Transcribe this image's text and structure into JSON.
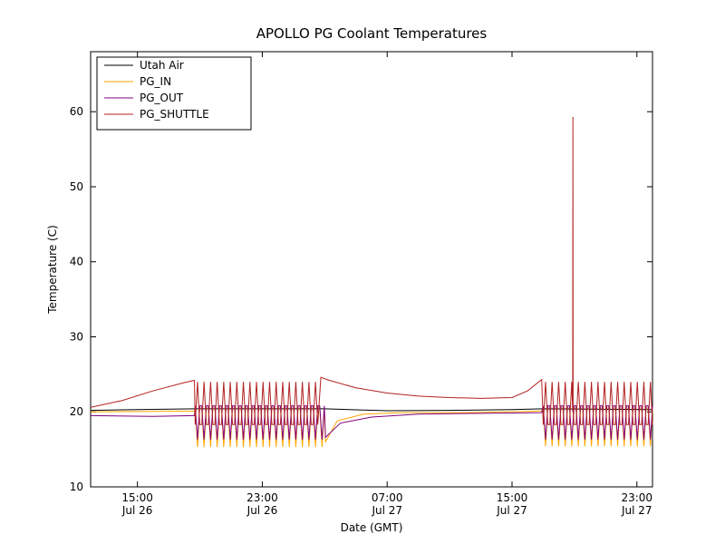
{
  "chart_data": {
    "type": "line",
    "title": "APOLLO PG Coolant Temperatures",
    "xlabel": "Date (GMT)",
    "ylabel": "Temperature (C)",
    "background_color": "#ffffff",
    "axes_color": "#000000",
    "xlim_hours": [
      0,
      36
    ],
    "ylim": [
      10,
      68
    ],
    "y_ticks": [
      10,
      20,
      30,
      40,
      50,
      60
    ],
    "x_ticks": [
      {
        "hour": 3,
        "time": "15:00",
        "date": "Jul 26"
      },
      {
        "hour": 11,
        "time": "23:00",
        "date": "Jul 26"
      },
      {
        "hour": 19,
        "time": "07:00",
        "date": "Jul 27"
      },
      {
        "hour": 27,
        "time": "15:00",
        "date": "Jul 27"
      },
      {
        "hour": 35,
        "time": "23:00",
        "date": "Jul 27"
      }
    ],
    "legend": {
      "position": "upper-left",
      "border_color": "#000000",
      "background": "#ffffff"
    },
    "series": [
      {
        "name": "Utah Air",
        "color": "#000000",
        "segments": [
          {
            "type": "smooth",
            "points": [
              [
                0,
                20.2
              ],
              [
                3,
                20.3
              ],
              [
                6.7,
                20.4
              ],
              [
                12,
                20.4
              ],
              [
                15,
                20.4
              ],
              [
                19,
                20.15
              ],
              [
                23,
                20.2
              ],
              [
                27,
                20.3
              ],
              [
                29,
                20.4
              ],
              [
                33,
                20.35
              ],
              [
                36,
                20.3
              ]
            ]
          }
        ]
      },
      {
        "name": "PG_IN",
        "color": "#ffa500",
        "segments": [
          {
            "type": "smooth",
            "points": [
              [
                0,
                20.0
              ],
              [
                3,
                20.05
              ],
              [
                6.65,
                20.1
              ]
            ]
          },
          {
            "type": "osc",
            "start": 6.7,
            "end": 15.0,
            "period": 0.42,
            "base": 20.5,
            "extreme": 15.3
          },
          {
            "type": "smooth",
            "points": [
              [
                15.05,
                16.0
              ],
              [
                15.8,
                18.8
              ],
              [
                17.5,
                19.7
              ],
              [
                20,
                19.9
              ],
              [
                24,
                19.9
              ],
              [
                28.9,
                20.1
              ]
            ]
          },
          {
            "type": "osc",
            "start": 29.0,
            "end": 36.0,
            "period": 0.42,
            "base": 20.5,
            "extreme": 15.4
          }
        ]
      },
      {
        "name": "PG_OUT",
        "color": "#800080",
        "segments": [
          {
            "type": "smooth",
            "points": [
              [
                0,
                19.5
              ],
              [
                4,
                19.4
              ],
              [
                6.65,
                19.5
              ]
            ]
          },
          {
            "type": "osc",
            "start": 6.7,
            "end": 15.0,
            "period": 0.42,
            "base": 20.8,
            "extreme": 16.3
          },
          {
            "type": "smooth",
            "points": [
              [
                15.05,
                16.6
              ],
              [
                16,
                18.5
              ],
              [
                18,
                19.3
              ],
              [
                21,
                19.7
              ],
              [
                25,
                19.8
              ],
              [
                28.9,
                19.9
              ]
            ]
          },
          {
            "type": "osc",
            "start": 29.0,
            "end": 36.0,
            "period": 0.42,
            "base": 20.8,
            "extreme": 16.3
          }
        ]
      },
      {
        "name": "PG_SHUTTLE",
        "color": "#b22222",
        "segments": [
          {
            "type": "smooth",
            "points": [
              [
                0,
                20.6
              ],
              [
                2,
                21.5
              ],
              [
                4,
                22.8
              ],
              [
                6.0,
                23.9
              ],
              [
                6.65,
                24.2
              ]
            ]
          },
          {
            "type": "osc",
            "start": 6.7,
            "end": 14.6,
            "period": 0.42,
            "base": 18.3,
            "extreme": 24.0
          },
          {
            "type": "smooth",
            "points": [
              [
                14.75,
                24.6
              ],
              [
                15.3,
                24.2
              ],
              [
                17,
                23.2
              ],
              [
                19,
                22.5
              ],
              [
                21,
                22.1
              ],
              [
                23,
                21.9
              ],
              [
                25,
                21.8
              ],
              [
                27,
                21.9
              ],
              [
                28,
                22.8
              ],
              [
                28.9,
                24.3
              ]
            ]
          },
          {
            "type": "osc",
            "start": 29.0,
            "end": 36.0,
            "period": 0.42,
            "base": 18.3,
            "extreme": 24.0
          }
        ],
        "spikes": [
          [
            30.9,
            59.3
          ]
        ]
      }
    ]
  }
}
